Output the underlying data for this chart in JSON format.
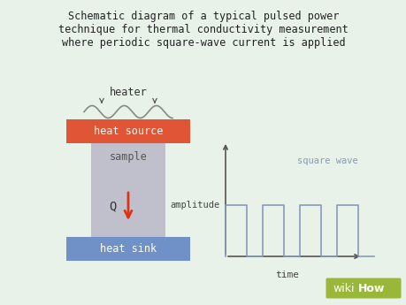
{
  "bg_color": "#e8f2e8",
  "title_lines": [
    "Schematic diagram of a typical pulsed power",
    "technique for thermal conductivity measurement",
    "where periodic square-wave current is applied"
  ],
  "title_fontsize": 8.5,
  "title_font": "monospace",
  "heat_source_color": "#e05535",
  "heat_sink_color": "#7090c8",
  "sample_color": "#c0c0cc",
  "heater_text": "heater",
  "heat_source_text": "heat source",
  "sample_text": "sample",
  "heat_sink_text": "heat sink",
  "Q_label": "Q",
  "arrow_color": "#dd3311",
  "square_wave_color": "#8899bb",
  "square_wave_label": "square wave",
  "amplitude_label": "amplitude",
  "time_label": "time",
  "wikihow_bg": "#99b83a",
  "wikihow_text_wiki": "wiki",
  "wikihow_text_how": "How"
}
